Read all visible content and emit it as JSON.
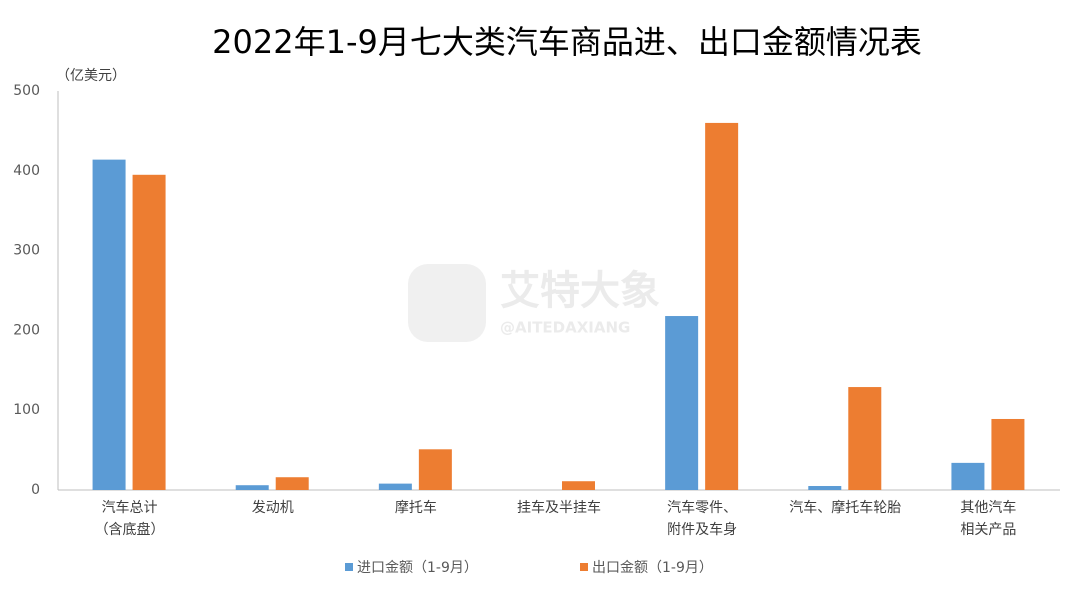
{
  "chart_data": {
    "type": "bar",
    "title": "2022年1-9月七大类汽车商品进、出口金额情况表",
    "y_label": "（亿美元）",
    "watermark": "艾特大象",
    "watermark_sub": "@AITEDAXIANG",
    "categories": [
      "汽车总计\n（含底盘）",
      "发动机",
      "摩托车",
      "挂车及半挂车",
      "汽车零件、\n附件及车身",
      "汽车、摩托车轮胎",
      "其他汽车\n相关产品"
    ],
    "series": [
      {
        "name": "进口金额（1-9月）",
        "color": "#5b9bd5",
        "values": [
          414,
          6,
          8,
          0,
          218,
          5,
          34
        ]
      },
      {
        "name": "出口金额（1-9月）",
        "color": "#ed7d31",
        "values": [
          395,
          16,
          51,
          11,
          460,
          129,
          89
        ]
      }
    ],
    "ylim": [
      0,
      500
    ],
    "yticks": [
      0,
      100,
      200,
      300,
      400,
      500
    ],
    "grid": false
  }
}
